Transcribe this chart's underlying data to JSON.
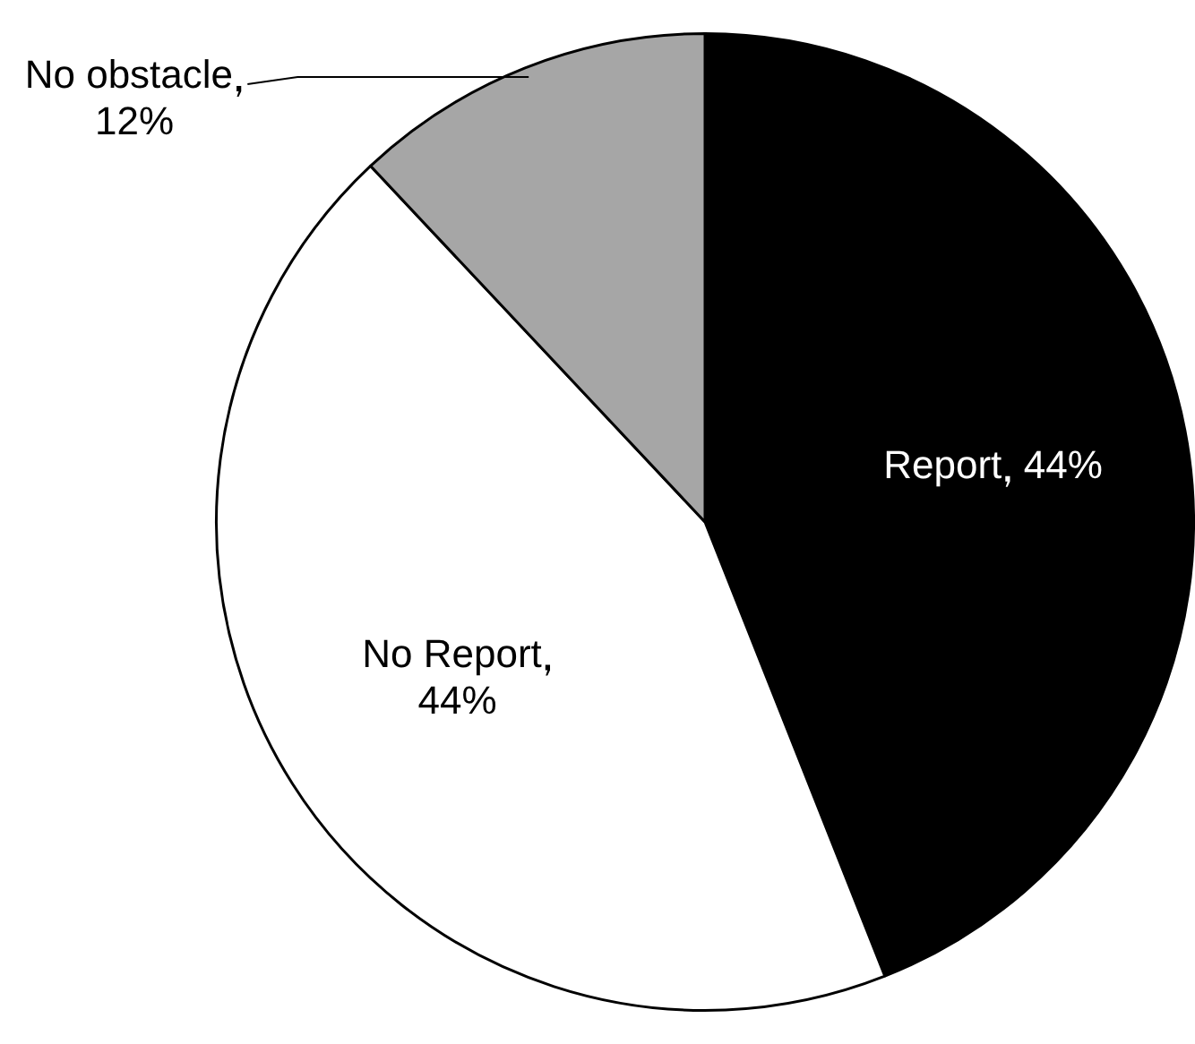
{
  "chart_data": {
    "type": "pie",
    "categories": [
      "Report",
      "No Report",
      "No obstacle"
    ],
    "values": [
      44,
      44,
      12
    ],
    "colors": [
      "#000000",
      "#ffffff",
      "#a6a6a6"
    ],
    "value_labels": [
      "44%",
      "44%",
      "12%"
    ]
  }
}
